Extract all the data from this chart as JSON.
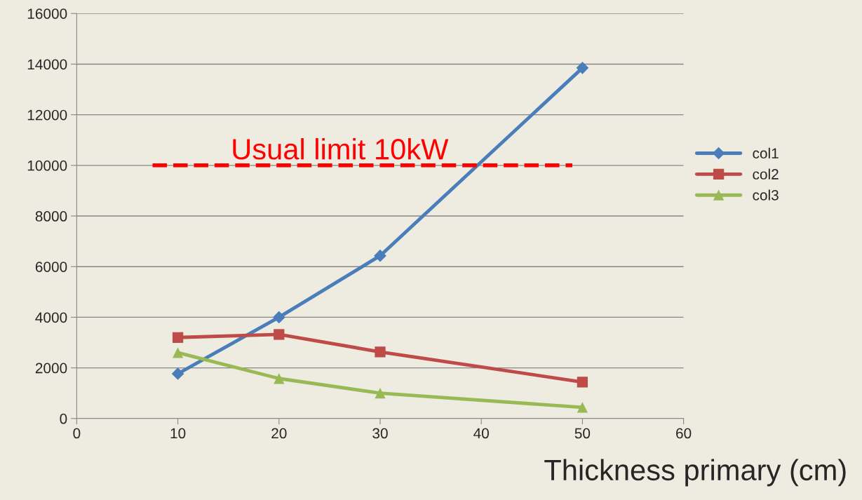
{
  "chart_data": {
    "type": "line",
    "xlabel": "Thickness primary (cm)",
    "x": [
      10,
      20,
      30,
      50
    ],
    "series": [
      {
        "name": "col1",
        "color": "#4a7ebb",
        "marker": "diamond",
        "values": [
          1770,
          4000,
          6430,
          13850
        ]
      },
      {
        "name": "col2",
        "color": "#be4b48",
        "marker": "square",
        "values": [
          3200,
          3320,
          2630,
          1440
        ]
      },
      {
        "name": "col3",
        "color": "#98b954",
        "marker": "triangle",
        "values": [
          2600,
          1580,
          1000,
          440
        ]
      }
    ],
    "xlim": [
      0,
      60
    ],
    "xticks": [
      0,
      10,
      20,
      30,
      40,
      50,
      60
    ],
    "ylim": [
      0,
      16000
    ],
    "yticks": [
      0,
      2000,
      4000,
      6000,
      8000,
      10000,
      12000,
      14000,
      16000
    ],
    "ref_lines": [
      {
        "axis": "y",
        "value": 10000,
        "label": "Usual limit 10kW",
        "color": "#ff0000",
        "line_style": "dashed"
      }
    ],
    "grid": "y",
    "legend": "right"
  }
}
